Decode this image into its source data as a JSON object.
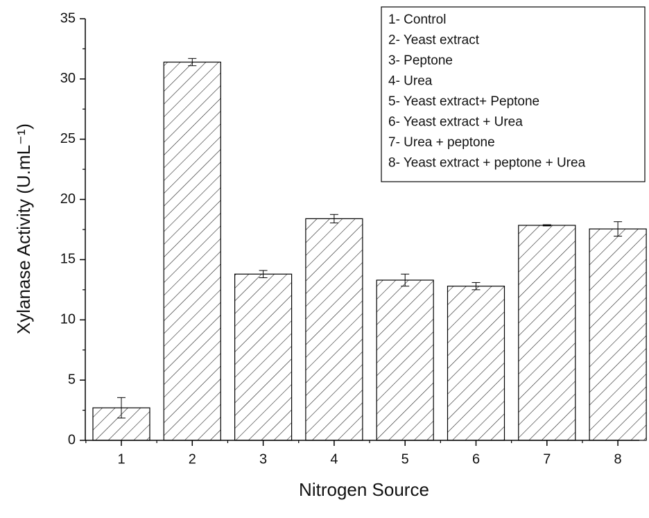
{
  "chart_data": {
    "type": "bar",
    "x_label": "Nitrogen Source",
    "y_label": "Xylanase Activity (U.mL⁻¹)",
    "categories": [
      "1",
      "2",
      "3",
      "4",
      "5",
      "6",
      "7",
      "8"
    ],
    "values": [
      2.7,
      31.4,
      13.8,
      18.4,
      13.3,
      12.8,
      17.85,
      17.55
    ],
    "errors": [
      0.85,
      0.3,
      0.3,
      0.35,
      0.5,
      0.3,
      0.05,
      0.6
    ],
    "color": "#222222",
    "ylim": [
      0,
      35
    ],
    "yticks": [
      0,
      5,
      10,
      15,
      20,
      25,
      30,
      35
    ],
    "annotations": [
      "1- Control",
      "2- Yeast extract",
      "3- Peptone",
      "4- Urea",
      "5- Yeast extract+ Peptone",
      "6- Yeast extract + Urea",
      "7- Urea + peptone",
      "8- Yeast extract + peptone + Urea"
    ]
  }
}
